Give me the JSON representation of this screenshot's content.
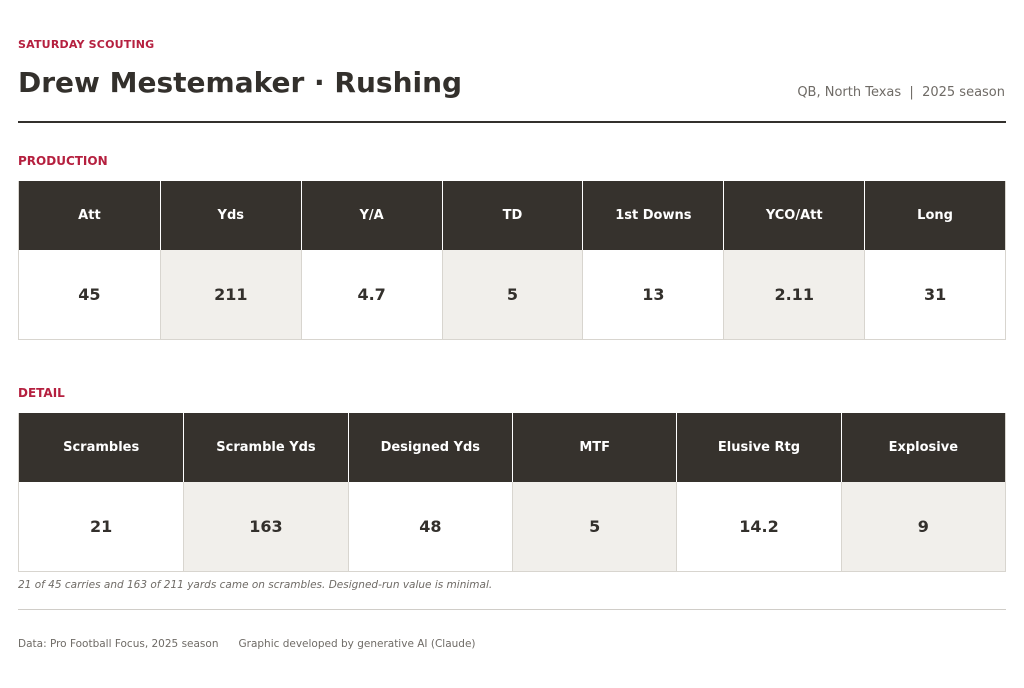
{
  "header": {
    "kicker": "SATURDAY SCOUTING",
    "title": "Drew Mestemaker · Rushing",
    "subtitle": "QB, North Texas  |  2025 season"
  },
  "production": {
    "label": "PRODUCTION",
    "headers": [
      "Att",
      "Yds",
      "Y/A",
      "TD",
      "1st Downs",
      "YCO/Att",
      "Long"
    ],
    "values": [
      "45",
      "211",
      "4.7",
      "5",
      "13",
      "2.11",
      "31"
    ]
  },
  "detail": {
    "label": "DETAIL",
    "headers": [
      "Scrambles",
      "Scramble Yds",
      "Designed Yds",
      "MTF",
      "Elusive Rtg",
      "Explosive"
    ],
    "values": [
      "21",
      "163",
      "48",
      "5",
      "14.2",
      "9"
    ]
  },
  "note": "21 of 45 carries and 163 of 211 yards came on scrambles. Designed-run value is minimal.",
  "footer": {
    "source": "Data: Pro Football Focus, 2025 season",
    "credit": "Graphic developed by generative AI (Claude)"
  },
  "colors": {
    "accent": "#b5203f",
    "header_bg": "#36322d",
    "shaded_cell": "#f1efeb"
  }
}
